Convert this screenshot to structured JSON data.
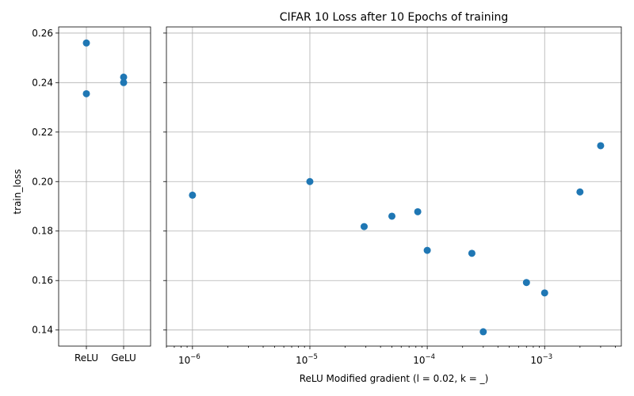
{
  "chart_data": {
    "title": "CIFAR 10 Loss after 10 Epochs of training",
    "ylabel": "train_loss",
    "ylim": [
      0.1335,
      0.2625
    ],
    "yticks": [
      0.14,
      0.16,
      0.18,
      0.2,
      0.22,
      0.24,
      0.26
    ],
    "ytick_labels": [
      "0.14",
      "0.16",
      "0.18",
      "0.20",
      "0.22",
      "0.24",
      "0.26"
    ],
    "grid": true,
    "marker_color": "#1f77b4",
    "left_panel": {
      "type": "scatter",
      "categories": [
        "ReLU",
        "GeLU"
      ],
      "points": [
        {
          "x": "ReLU",
          "y": 0.256
        },
        {
          "x": "ReLU",
          "y": 0.2355
        },
        {
          "x": "GeLU",
          "y": 0.2422
        },
        {
          "x": "GeLU",
          "y": 0.24
        }
      ]
    },
    "right_panel": {
      "type": "scatter",
      "xscale": "log",
      "xlabel": "ReLU Modified gradient (l = 0.02, k = _)",
      "xlim": [
        6e-07,
        0.0045
      ],
      "xticks": [
        {
          "value": 1e-06,
          "base": "10",
          "exp": "−6"
        },
        {
          "value": 1e-05,
          "base": "10",
          "exp": "−5"
        },
        {
          "value": 0.0001,
          "base": "10",
          "exp": "−4"
        },
        {
          "value": 0.001,
          "base": "10",
          "exp": "−3"
        }
      ],
      "points": [
        {
          "x": 1e-06,
          "y": 0.1945
        },
        {
          "x": 1e-05,
          "y": 0.2
        },
        {
          "x": 2.9e-05,
          "y": 0.1818
        },
        {
          "x": 5e-05,
          "y": 0.186
        },
        {
          "x": 8.3e-05,
          "y": 0.1878
        },
        {
          "x": 0.0001,
          "y": 0.1722
        },
        {
          "x": 0.00024,
          "y": 0.171
        },
        {
          "x": 0.0003,
          "y": 0.1393
        },
        {
          "x": 0.0007,
          "y": 0.1592
        },
        {
          "x": 0.001,
          "y": 0.155
        },
        {
          "x": 0.002,
          "y": 0.1958
        },
        {
          "x": 0.003,
          "y": 0.2145
        }
      ]
    }
  }
}
